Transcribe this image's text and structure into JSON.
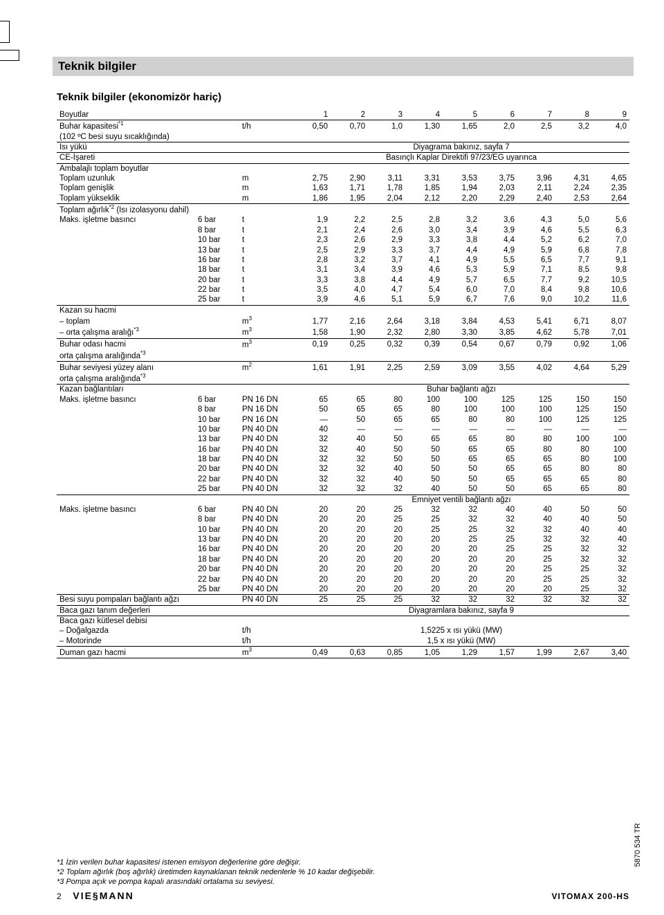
{
  "meta": {
    "title_bar": "Teknik bilgiler",
    "subtitle": "Teknik bilgiler (ekonomizör hariç)",
    "side_number": "5870 534 TR",
    "page_number": "2",
    "brand": "VIE§MANN",
    "product": "VITOMAX 200-HS"
  },
  "cols9": [
    "1",
    "2",
    "3",
    "4",
    "5",
    "6",
    "7",
    "8",
    "9"
  ],
  "header": {
    "boyutlar": "Boyutlar",
    "buhar_kap": "Buhar kapasitesi",
    "buhar_kap_sup": "*1",
    "buhar_kap_unit": "t/h",
    "buhar_kap_vals": [
      "0,50",
      "0,70",
      "1,0",
      "1,30",
      "1,65",
      "2,0",
      "2,5",
      "3,2",
      "4,0"
    ],
    "besi_note": "(102 ºC besi suyu sıcaklığında)",
    "isi_yuku": "Isı yükü",
    "isi_yuku_note": "Diyagrama bakınız, sayfa 7",
    "ce": "CE-İşareti",
    "ce_note": "Basınçlı Kaplar Direktifi 97/23/EG uyarınca"
  },
  "ambalaj": {
    "title": "Ambalajlı toplam boyutlar",
    "rows": [
      {
        "label": "Toplam uzunluk",
        "unit": "m",
        "v": [
          "2,75",
          "2,90",
          "3,11",
          "3,31",
          "3,53",
          "3,75",
          "3,96",
          "4,31",
          "4,65"
        ]
      },
      {
        "label": "Toplam genişlik",
        "unit": "m",
        "v": [
          "1,63",
          "1,71",
          "1,78",
          "1,85",
          "1,94",
          "2,03",
          "2,11",
          "2,24",
          "2,35"
        ]
      },
      {
        "label": "Toplam yükseklik",
        "unit": "m",
        "v": [
          "1,86",
          "1,95",
          "2,04",
          "2,12",
          "2,20",
          "2,29",
          "2,40",
          "2,53",
          "2,64"
        ]
      }
    ]
  },
  "agirlik": {
    "title": "Toplam ağırlık",
    "title_sup": "*2",
    "title_tail": " (Isı izolasyonu dahil)",
    "row_label": "Maks. işletme basıncı",
    "rows": [
      {
        "bar": "6 bar",
        "unit": "t",
        "v": [
          "1,9",
          "2,2",
          "2,5",
          "2,8",
          "3,2",
          "3,6",
          "4,3",
          "5,0",
          "5,6"
        ]
      },
      {
        "bar": "8 bar",
        "unit": "t",
        "v": [
          "2,1",
          "2,4",
          "2,6",
          "3,0",
          "3,4",
          "3,9",
          "4,6",
          "5,5",
          "6,3"
        ]
      },
      {
        "bar": "10 bar",
        "unit": "t",
        "v": [
          "2,3",
          "2,6",
          "2,9",
          "3,3",
          "3,8",
          "4,4",
          "5,2",
          "6,2",
          "7,0"
        ]
      },
      {
        "bar": "13 bar",
        "unit": "t",
        "v": [
          "2,5",
          "2,9",
          "3,3",
          "3,7",
          "4,4",
          "4,9",
          "5,9",
          "6,8",
          "7,8"
        ]
      },
      {
        "bar": "16 bar",
        "unit": "t",
        "v": [
          "2,8",
          "3,2",
          "3,7",
          "4,1",
          "4,9",
          "5,5",
          "6,5",
          "7,7",
          "9,1"
        ]
      },
      {
        "bar": "18 bar",
        "unit": "t",
        "v": [
          "3,1",
          "3,4",
          "3,9",
          "4,6",
          "5,3",
          "5,9",
          "7,1",
          "8,5",
          "9,8"
        ]
      },
      {
        "bar": "20 bar",
        "unit": "t",
        "v": [
          "3,3",
          "3,8",
          "4,4",
          "4,9",
          "5,7",
          "6,5",
          "7,7",
          "9,2",
          "10,5"
        ]
      },
      {
        "bar": "22 bar",
        "unit": "t",
        "v": [
          "3,5",
          "4,0",
          "4,7",
          "5,4",
          "6,0",
          "7,0",
          "8,4",
          "9,8",
          "10,6"
        ]
      },
      {
        "bar": "25 bar",
        "unit": "t",
        "v": [
          "3,9",
          "4,6",
          "5,1",
          "5,9",
          "6,7",
          "7,6",
          "9,0",
          "10,2",
          "11,6"
        ]
      }
    ]
  },
  "kazan_su": {
    "title": "Kazan su hacmi",
    "toplam": {
      "label": "– toplam",
      "unit": "m",
      "sup": "3",
      "v": [
        "1,77",
        "2,16",
        "2,64",
        "3,18",
        "3,84",
        "4,53",
        "5,41",
        "6,71",
        "8,07"
      ]
    },
    "orta": {
      "label": "– orta çalışma aralığı",
      "sup2": "*3",
      "unit": "m",
      "sup": "3",
      "v": [
        "1,58",
        "1,90",
        "2,32",
        "2,80",
        "3,30",
        "3,85",
        "4,62",
        "5,78",
        "7,01"
      ]
    }
  },
  "buhar_odasi": {
    "label": "Buhar odası hacmi",
    "unit": "m",
    "sup": "3",
    "v": [
      "0,19",
      "0,25",
      "0,32",
      "0,39",
      "0,54",
      "0,67",
      "0,79",
      "0,92",
      "1,06"
    ],
    "note": "orta çalışma aralığında",
    "note_sup": "*3"
  },
  "seviye": {
    "label": "Buhar seviyesi yüzey alanı",
    "unit": "m",
    "sup": "2",
    "v": [
      "1,61",
      "1,91",
      "2,25",
      "2,59",
      "3,09",
      "3,55",
      "4,02",
      "4,64",
      "5,29"
    ],
    "note": "orta çalışma aralığında",
    "note_sup": "*3"
  },
  "baglanti": {
    "title": "Kazan bağlantıları",
    "subtitle": "Buhar bağlantı ağzı",
    "row_label": "Maks. işletme basıncı",
    "rows": [
      {
        "bar": "6 bar",
        "pn": "PN 16 DN",
        "v": [
          "65",
          "65",
          "80",
          "100",
          "100",
          "125",
          "125",
          "150",
          "150"
        ]
      },
      {
        "bar": "8 bar",
        "pn": "PN 16 DN",
        "v": [
          "50",
          "65",
          "65",
          "80",
          "100",
          "100",
          "100",
          "125",
          "150"
        ]
      },
      {
        "bar": "10 bar",
        "pn": "PN 16 DN",
        "v": [
          "—",
          "50",
          "65",
          "65",
          "80",
          "80",
          "100",
          "125",
          "125"
        ]
      },
      {
        "bar": "10 bar",
        "pn": "PN 40 DN",
        "v": [
          "40",
          "—",
          "—",
          "—",
          "—",
          "—",
          "—",
          "—",
          "—"
        ]
      },
      {
        "bar": "13 bar",
        "pn": "PN 40 DN",
        "v": [
          "32",
          "40",
          "50",
          "65",
          "65",
          "80",
          "80",
          "100",
          "100"
        ]
      },
      {
        "bar": "16 bar",
        "pn": "PN 40 DN",
        "v": [
          "32",
          "40",
          "50",
          "50",
          "65",
          "65",
          "80",
          "80",
          "100"
        ]
      },
      {
        "bar": "18 bar",
        "pn": "PN 40 DN",
        "v": [
          "32",
          "32",
          "50",
          "50",
          "65",
          "65",
          "65",
          "80",
          "100"
        ]
      },
      {
        "bar": "20 bar",
        "pn": "PN 40 DN",
        "v": [
          "32",
          "32",
          "40",
          "50",
          "50",
          "65",
          "65",
          "80",
          "80"
        ]
      },
      {
        "bar": "22 bar",
        "pn": "PN 40 DN",
        "v": [
          "32",
          "32",
          "40",
          "50",
          "50",
          "65",
          "65",
          "65",
          "80"
        ]
      },
      {
        "bar": "25 bar",
        "pn": "PN 40 DN",
        "v": [
          "32",
          "32",
          "32",
          "40",
          "50",
          "50",
          "65",
          "65",
          "80"
        ]
      }
    ]
  },
  "emniyet": {
    "subtitle": "Emniyet ventili bağlantı ağzı",
    "row_label": "Maks. işletme basıncı",
    "rows": [
      {
        "bar": "6 bar",
        "pn": "PN 40 DN",
        "v": [
          "20",
          "20",
          "25",
          "32",
          "32",
          "40",
          "40",
          "50",
          "50"
        ]
      },
      {
        "bar": "8 bar",
        "pn": "PN 40 DN",
        "v": [
          "20",
          "20",
          "25",
          "25",
          "32",
          "32",
          "40",
          "40",
          "50"
        ]
      },
      {
        "bar": "10 bar",
        "pn": "PN 40 DN",
        "v": [
          "20",
          "20",
          "20",
          "25",
          "25",
          "32",
          "32",
          "40",
          "40"
        ]
      },
      {
        "bar": "13 bar",
        "pn": "PN 40 DN",
        "v": [
          "20",
          "20",
          "20",
          "20",
          "25",
          "25",
          "32",
          "32",
          "40"
        ]
      },
      {
        "bar": "16 bar",
        "pn": "PN 40 DN",
        "v": [
          "20",
          "20",
          "20",
          "20",
          "20",
          "25",
          "25",
          "32",
          "32"
        ]
      },
      {
        "bar": "18 bar",
        "pn": "PN 40 DN",
        "v": [
          "20",
          "20",
          "20",
          "20",
          "20",
          "20",
          "25",
          "32",
          "32"
        ]
      },
      {
        "bar": "20 bar",
        "pn": "PN 40 DN",
        "v": [
          "20",
          "20",
          "20",
          "20",
          "20",
          "20",
          "25",
          "25",
          "32"
        ]
      },
      {
        "bar": "22 bar",
        "pn": "PN 40 DN",
        "v": [
          "20",
          "20",
          "20",
          "20",
          "20",
          "20",
          "25",
          "25",
          "32"
        ]
      },
      {
        "bar": "25 bar",
        "pn": "PN 40 DN",
        "v": [
          "20",
          "20",
          "20",
          "20",
          "20",
          "20",
          "20",
          "25",
          "32"
        ]
      }
    ]
  },
  "besi": {
    "label": "Besi suyu pompaları bağlantı ağzı",
    "pn": "PN 40 DN",
    "v": [
      "25",
      "25",
      "25",
      "32",
      "32",
      "32",
      "32",
      "32",
      "32"
    ]
  },
  "baca": {
    "tanim": "Baca gazı tanım değerleri",
    "tanim_note": "Diyagramlara bakınız, sayfa 9",
    "kutle": "Baca gazı kütlesel debisi",
    "dogalgaz": {
      "label": "– Doğalgazda",
      "unit": "t/h",
      "note": "1,5225 x ısı yükü (MW)"
    },
    "motorin": {
      "label": "– Motorinde",
      "unit": "t/h",
      "note": "1,5 x ısı yükü (MW)"
    }
  },
  "duman": {
    "label": "Duman gazı hacmi",
    "unit": "m",
    "sup": "3",
    "v": [
      "0,49",
      "0,63",
      "0,85",
      "1,05",
      "1,29",
      "1,57",
      "1,99",
      "2,67",
      "3,40"
    ]
  },
  "footnotes": [
    "*1  İzin verilen buhar kapasitesi istenen emisyon değerlerine göre değişir.",
    "*2  Toplam ağırlık (boş ağırlık) üretimden kaynaklanan teknik nedenlerle % 10 kadar değişebilir.",
    "*3  Pompa açık ve pompa kapalı arasındaki ortalama su seviyesi."
  ]
}
